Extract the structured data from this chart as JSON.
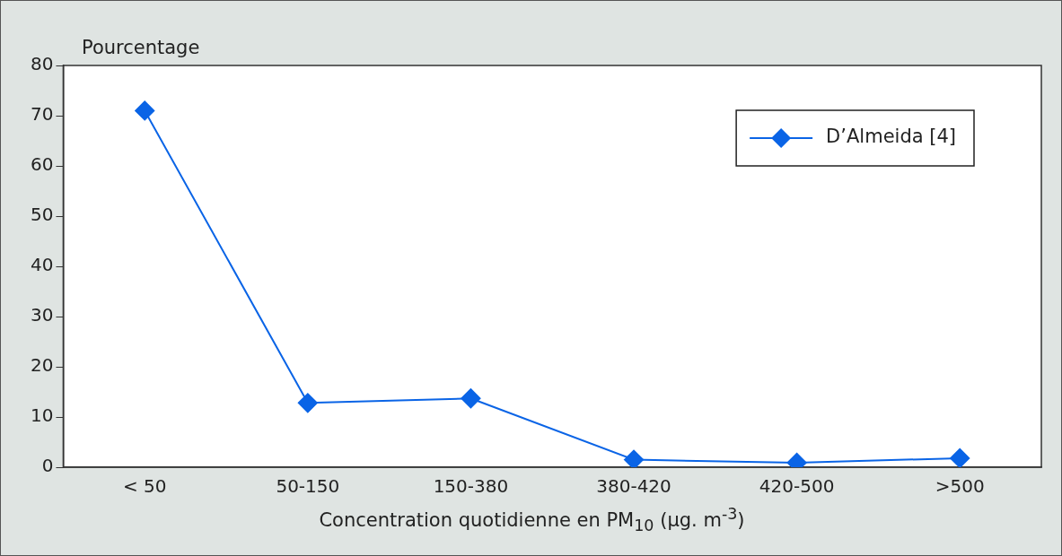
{
  "chart_data": {
    "type": "line",
    "ylabel": "Pourcentage",
    "xlabel": "Concentration quotidienne en PM$_{10}$ (µg. m$^{-3}$)",
    "categories": [
      "< 50",
      "50-150",
      "150-380",
      "380-420",
      "420-500",
      ">500"
    ],
    "series": [
      {
        "name": "D’Almeida [4]",
        "color": "#0a64e6",
        "values": [
          71,
          12.8,
          13.7,
          1.5,
          0.9,
          1.8
        ]
      }
    ],
    "ylim": [
      0,
      80
    ],
    "yticks": [
      0,
      10,
      20,
      30,
      40,
      50,
      60,
      70,
      80
    ],
    "grid": false,
    "legend": "top right",
    "marker": "diamond",
    "line_style": "solid"
  }
}
